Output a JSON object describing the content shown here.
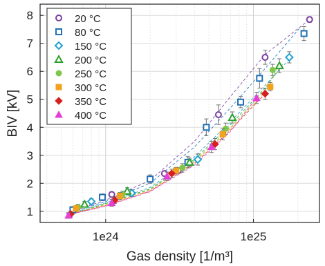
{
  "chart_data": {
    "type": "scatter",
    "xlabel": "Gas density [1/m³]",
    "ylabel": "BIV [kV]",
    "x_scale": "log",
    "xlim": [
      3.6e+23,
      2.8e+25
    ],
    "ylim": [
      0.6,
      8.4
    ],
    "x_ticks": [
      {
        "value": 1e+24,
        "label": "1e24"
      },
      {
        "value": 1e+25,
        "label": "1e25"
      }
    ],
    "y_ticks": [
      {
        "value": 1,
        "label": "1"
      },
      {
        "value": 2,
        "label": "2"
      },
      {
        "value": 3,
        "label": "3"
      },
      {
        "value": 4,
        "label": "4"
      },
      {
        "value": 5,
        "label": "5"
      },
      {
        "value": 6,
        "label": "6"
      },
      {
        "value": 7,
        "label": "7"
      },
      {
        "value": 8,
        "label": "8"
      }
    ],
    "grid": true,
    "legend_position": "top-left",
    "series": [
      {
        "name": "20 °C",
        "color": "#7b3fa0",
        "marker": "circle-open",
        "points": [
          [
            1.1e+24,
            1.6,
            0.1
          ],
          [
            2.5e+24,
            2.35,
            0.1
          ],
          [
            3.1e+24,
            2.45,
            0.1
          ],
          [
            5.8e+24,
            4.45,
            0.35
          ],
          [
            1.2e+25,
            6.5,
            0.25
          ],
          [
            2.4e+25,
            7.85,
            0.1
          ]
        ],
        "fit": [
          [
            5.4e+23,
            0.92
          ],
          [
            1e+24,
            1.4
          ],
          [
            2e+24,
            2.1
          ],
          [
            4e+24,
            3.5
          ],
          [
            7e+24,
            5.1
          ],
          [
            1.2e+25,
            6.6
          ],
          [
            2.4e+25,
            7.85
          ]
        ]
      },
      {
        "name": "80 °C",
        "color": "#1f6fb5",
        "marker": "square-open",
        "points": [
          [
            6e+23,
            1.05,
            0.12
          ],
          [
            9.5e+23,
            1.5,
            0.12
          ],
          [
            2e+24,
            2.15,
            0.15
          ],
          [
            3.6e+24,
            2.75,
            0.2
          ],
          [
            4.8e+24,
            4.0,
            0.3
          ],
          [
            8.2e+24,
            4.9,
            0.2
          ],
          [
            1.1e+25,
            5.75,
            0.35
          ],
          [
            2.2e+25,
            7.35,
            0.25
          ]
        ],
        "fit": [
          [
            5.6e+23,
            0.92
          ],
          [
            1e+24,
            1.35
          ],
          [
            2e+24,
            2.0
          ],
          [
            4e+24,
            3.3
          ],
          [
            7e+24,
            4.7
          ],
          [
            1.2e+25,
            6.1
          ],
          [
            2.1e+25,
            7.6
          ]
        ]
      },
      {
        "name": "150 °C",
        "color": "#20a0d0",
        "marker": "diamond-open",
        "points": [
          [
            8e+23,
            1.35,
            0.1
          ],
          [
            1.5e+24,
            1.65,
            0.12
          ],
          [
            4.2e+24,
            2.85,
            0.2
          ],
          [
            1.75e+25,
            6.5,
            0.2
          ]
        ],
        "fit": [
          [
            5.8e+23,
            0.92
          ],
          [
            1e+24,
            1.3
          ],
          [
            2e+24,
            1.85
          ],
          [
            4e+24,
            2.95
          ],
          [
            7e+24,
            4.2
          ],
          [
            1.2e+25,
            5.5
          ],
          [
            1.8e+25,
            6.5
          ]
        ]
      },
      {
        "name": "200 °C",
        "color": "#2ca02c",
        "marker": "triangle-open",
        "points": [
          [
            7.2e+23,
            1.25,
            0.1
          ],
          [
            1.4e+24,
            1.72,
            0.12
          ],
          [
            3.7e+24,
            2.75,
            0.15
          ],
          [
            7.2e+24,
            4.35,
            0.2
          ],
          [
            1.5e+25,
            6.2,
            0.25
          ]
        ],
        "fit": [
          [
            6e+23,
            0.92
          ],
          [
            1e+24,
            1.28
          ],
          [
            2e+24,
            1.8
          ],
          [
            4e+24,
            2.85
          ],
          [
            7e+24,
            4.1
          ],
          [
            1.2e+25,
            5.4
          ],
          [
            1.6e+25,
            6.3
          ]
        ]
      },
      {
        "name": "250 °C",
        "color": "#7fc64a",
        "marker": "circle",
        "points": [
          [
            6.5e+23,
            1.15,
            0.1
          ],
          [
            1.3e+24,
            1.6,
            0.12
          ],
          [
            3.3e+24,
            2.55,
            0.15
          ],
          [
            6.5e+24,
            3.95,
            0.2
          ],
          [
            1.35e+25,
            6.05,
            0.2
          ]
        ],
        "fit": [
          [
            6e+23,
            0.92
          ],
          [
            1e+24,
            1.25
          ],
          [
            2e+24,
            1.78
          ],
          [
            4e+24,
            2.8
          ],
          [
            7e+24,
            4.0
          ],
          [
            1.2e+25,
            5.35
          ],
          [
            1.45e+25,
            6.1
          ]
        ]
      },
      {
        "name": "300 °C",
        "color": "#f2a31b",
        "marker": "square",
        "points": [
          [
            6.3e+23,
            1.1,
            0.1
          ],
          [
            1.25e+24,
            1.55,
            0.12
          ],
          [
            3e+24,
            2.45,
            0.12
          ],
          [
            6.2e+24,
            3.75,
            0.2
          ],
          [
            1.3e+25,
            5.45,
            0.15
          ]
        ],
        "fit": [
          [
            6e+23,
            0.92
          ],
          [
            1e+24,
            1.22
          ],
          [
            2e+24,
            1.75
          ],
          [
            4e+24,
            2.75
          ],
          [
            7e+24,
            3.95
          ],
          [
            1.3e+25,
            5.45
          ]
        ]
      },
      {
        "name": "350 °C",
        "color": "#d62020",
        "marker": "diamond",
        "points": [
          [
            5.8e+23,
            0.9,
            0.1
          ],
          [
            1.15e+24,
            1.4,
            0.12
          ],
          [
            2.8e+24,
            2.35,
            0.15
          ],
          [
            5.5e+24,
            3.4,
            0.2
          ],
          [
            1.2e+25,
            5.2,
            0.2
          ]
        ],
        "fit": [
          [
            5.8e+23,
            0.9
          ],
          [
            1e+24,
            1.2
          ],
          [
            2e+24,
            1.72
          ],
          [
            4e+24,
            2.7
          ],
          [
            7e+24,
            3.9
          ],
          [
            1.2e+25,
            5.2
          ]
        ]
      },
      {
        "name": "400 °C",
        "color": "#e53fd6",
        "marker": "triangle",
        "points": [
          [
            5.6e+23,
            0.85,
            0.1
          ],
          [
            1.1e+24,
            1.3,
            0.12
          ],
          [
            2.6e+24,
            2.25,
            0.15
          ],
          [
            5.2e+24,
            3.3,
            0.2
          ],
          [
            1.05e+25,
            5.05,
            0.2
          ]
        ],
        "fit": [
          [
            5.6e+23,
            0.88
          ],
          [
            1e+24,
            1.18
          ],
          [
            2e+24,
            1.7
          ],
          [
            4e+24,
            2.65
          ],
          [
            7e+24,
            3.85
          ],
          [
            1.05e+25,
            5.05
          ]
        ]
      }
    ]
  }
}
